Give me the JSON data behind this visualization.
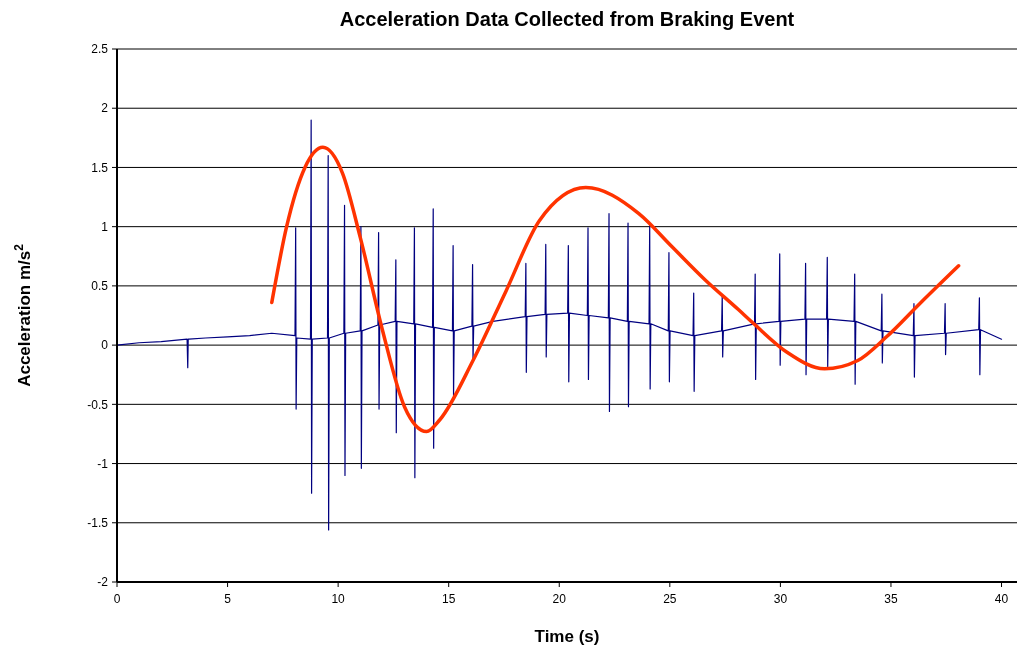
{
  "chart_data": {
    "type": "line",
    "title": "Acceleration Data Collected from Braking Event",
    "xlabel": "Time (s)",
    "ylabel": "Acceleration m/s$^{2}$",
    "xlim": [
      0,
      40.7
    ],
    "xticks": [
      0,
      5,
      10,
      15,
      20,
      25,
      30,
      35,
      40
    ],
    "ylim": [
      -2,
      2.5
    ],
    "yticks": [
      -2,
      -1.5,
      -1,
      -0.5,
      0,
      0.5,
      1,
      1.5,
      2,
      2.5
    ],
    "grid": "y",
    "marker": "none",
    "series": [
      {
        "color": "#000080",
        "x": [
          0,
          1,
          2,
          3.17,
          3.2,
          3.22,
          3.25,
          4,
          5,
          6,
          7,
          8.05,
          8.08,
          8.1,
          8.13,
          8.75,
          8.78,
          8.8,
          8.83,
          9.52,
          9.55,
          9.57,
          9.6,
          10.26,
          10.29,
          10.31,
          10.34,
          11,
          11.03,
          11.05,
          11.08,
          11.8,
          11.83,
          11.85,
          11.88,
          12.58,
          12.61,
          12.63,
          12.66,
          13.42,
          13.45,
          13.47,
          13.5,
          14.27,
          14.3,
          14.32,
          14.35,
          15.17,
          15.2,
          15.22,
          15.25,
          16.05,
          16.08,
          16.1,
          16.13,
          17,
          18.46,
          18.49,
          18.51,
          18.54,
          19.36,
          19.39,
          19.41,
          19.44,
          20.38,
          20.41,
          20.43,
          20.46,
          21.27,
          21.3,
          21.32,
          21.35,
          22.22,
          22.25,
          22.27,
          22.3,
          23.08,
          23.11,
          23.13,
          23.16,
          24.06,
          24.09,
          24.11,
          24.14,
          24.93,
          24.96,
          24.98,
          25.01,
          26.05,
          26.08,
          26.1,
          26.13,
          27.34,
          27.37,
          27.39,
          27.42,
          28.83,
          28.86,
          28.88,
          28.91,
          29.94,
          29.97,
          29.99,
          30.02,
          31.11,
          31.14,
          31.16,
          31.19,
          32.09,
          32.12,
          32.14,
          32.17,
          33.33,
          33.36,
          33.38,
          33.41,
          34.56,
          34.59,
          34.61,
          34.64,
          36.01,
          36.04,
          36.06,
          36.09,
          37.42,
          37.45,
          37.47,
          37.5,
          38.97,
          39,
          39.02,
          39.05,
          40
        ],
        "values": [
          0,
          0.02,
          0.03,
          0.05,
          -0.19,
          0.05,
          0.05,
          0.06,
          0.07,
          0.08,
          0.1,
          0.08,
          0.99,
          -0.54,
          0.06,
          0.05,
          1.9,
          -1.25,
          0.05,
          0.06,
          1.6,
          -1.56,
          0.06,
          0.1,
          1.18,
          -1.1,
          0.1,
          0.12,
          1,
          -1.04,
          0.12,
          0.17,
          0.95,
          -0.54,
          0.17,
          0.2,
          0.72,
          -0.74,
          0.2,
          0.18,
          0.99,
          -1.12,
          0.18,
          0.15,
          1.15,
          -0.87,
          0.15,
          0.12,
          0.84,
          -0.43,
          0.12,
          0.16,
          0.68,
          -0.13,
          0.16,
          0.2,
          0.24,
          0.69,
          -0.23,
          0.24,
          0.26,
          0.85,
          -0.1,
          0.26,
          0.27,
          0.84,
          -0.31,
          0.27,
          0.25,
          0.99,
          -0.29,
          0.25,
          0.23,
          1.11,
          -0.56,
          0.23,
          0.2,
          1.03,
          -0.52,
          0.2,
          0.18,
          1.01,
          -0.37,
          0.18,
          0.12,
          0.78,
          -0.31,
          0.12,
          0.08,
          0.44,
          -0.39,
          0.08,
          0.12,
          0.42,
          -0.1,
          0.12,
          0.18,
          0.6,
          -0.29,
          0.18,
          0.2,
          0.77,
          -0.17,
          0.2,
          0.22,
          0.69,
          -0.25,
          0.22,
          0.22,
          0.74,
          -0.18,
          0.22,
          0.2,
          0.6,
          -0.33,
          0.2,
          0.12,
          0.43,
          -0.15,
          0.12,
          0.08,
          0.35,
          -0.27,
          0.08,
          0.1,
          0.35,
          -0.08,
          0.1,
          0.13,
          0.4,
          -0.25,
          0.13,
          0.05
        ]
      },
      {
        "color": "#ff3300",
        "x": [
          7,
          7.67,
          8.5,
          9.31,
          10.2,
          11,
          12,
          13,
          14,
          14.6,
          16.1,
          17.6,
          19.1,
          21.2,
          23.6,
          25.1,
          26.6,
          28.1,
          28.8,
          30.3,
          32,
          33.5,
          34.8,
          36.3,
          38.06
        ],
        "values": [
          0.36,
          1,
          1.5,
          1.67,
          1.45,
          0.91,
          0.13,
          -0.52,
          -0.73,
          -0.63,
          -0.13,
          0.46,
          1.05,
          1.33,
          1.11,
          0.83,
          0.55,
          0.3,
          0.18,
          -0.06,
          -0.2,
          -0.13,
          0.07,
          0.35,
          0.67
        ]
      }
    ]
  }
}
